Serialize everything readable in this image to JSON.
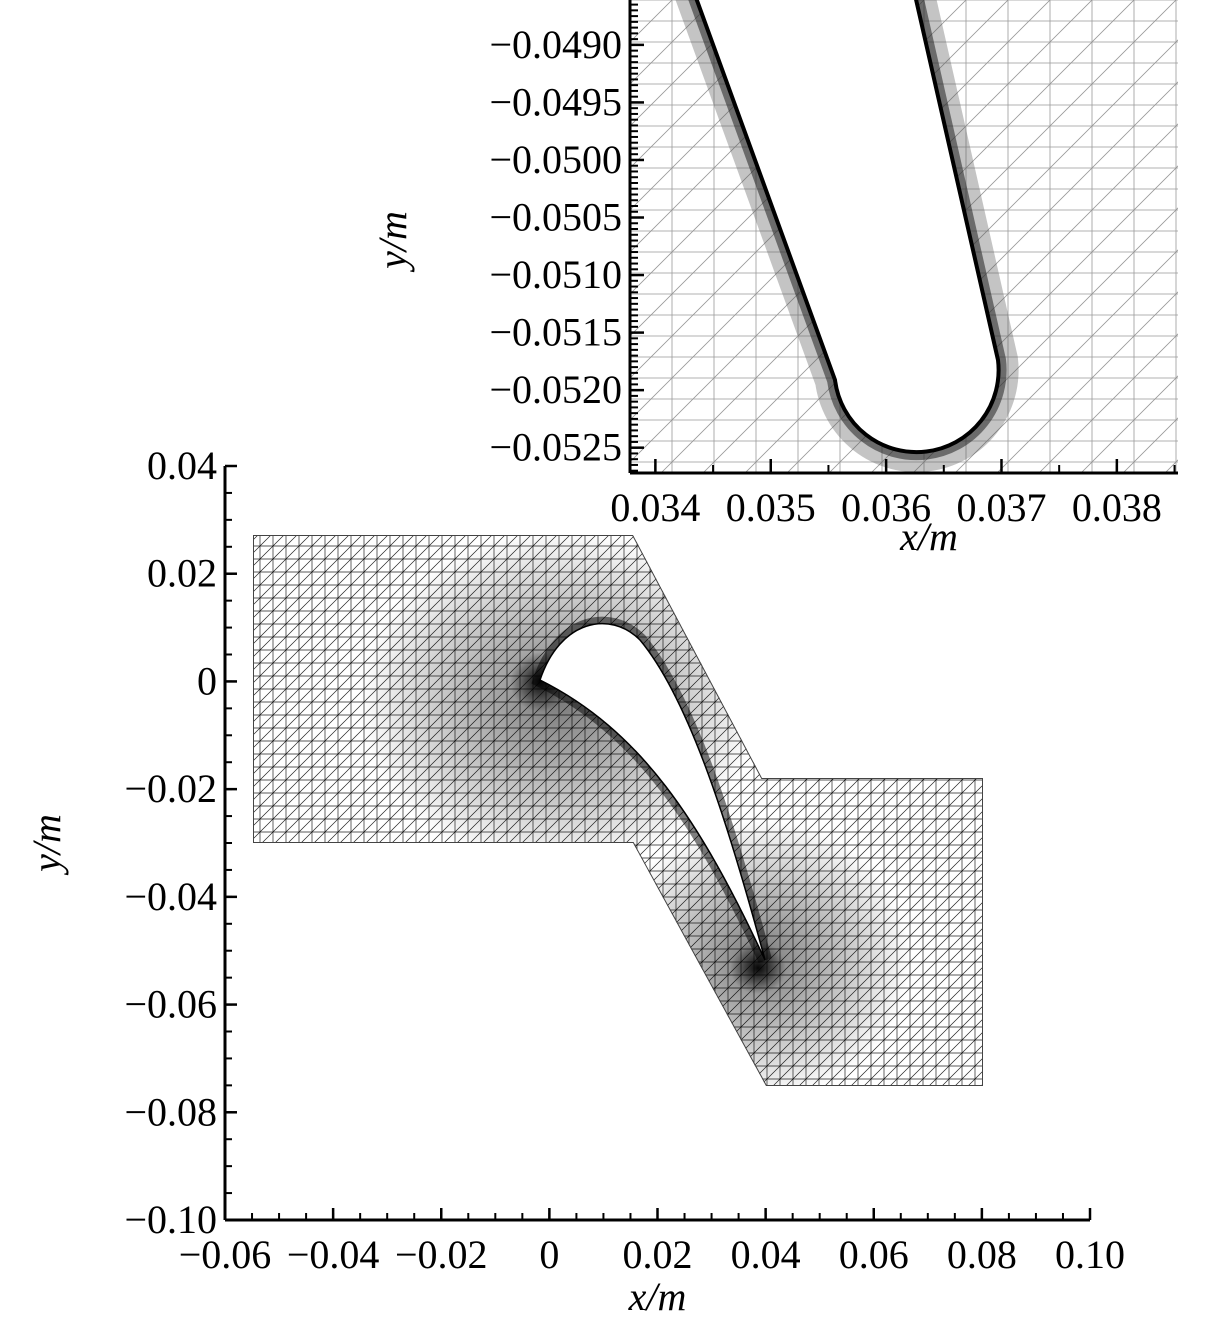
{
  "chart_data": [
    {
      "type": "mesh",
      "xlabel": "x/m",
      "ylabel": "y/m",
      "xlim": [
        -0.06,
        0.1
      ],
      "ylim": [
        -0.1,
        0.04
      ],
      "xticks": [
        {
          "value": -0.06,
          "label": "−0.06"
        },
        {
          "value": -0.04,
          "label": "−0.04"
        },
        {
          "value": -0.02,
          "label": "−0.02"
        },
        0,
        0.02,
        0.04,
        0.06,
        0.08,
        {
          "value": 0.1,
          "label": "0.10"
        }
      ],
      "yticks": [
        0.04,
        0.02,
        0,
        {
          "value": -0.02,
          "label": "−0.02"
        },
        {
          "value": -0.04,
          "label": "−0.04"
        },
        {
          "value": -0.06,
          "label": "−0.06"
        },
        {
          "value": -0.08,
          "label": "−0.08"
        },
        {
          "value": -0.1,
          "label": "−0.10"
        }
      ]
    },
    {
      "type": "mesh",
      "xlabel": "x/m",
      "ylabel": "y/m",
      "xlim": [
        0.03378,
        0.03853
      ],
      "ylim": [
        -0.05272,
        -0.04861
      ],
      "xticks": [
        0.034,
        0.035,
        0.036,
        0.037,
        0.038
      ],
      "yticks": [
        {
          "value": -0.049,
          "label": "−0.0490"
        },
        {
          "value": -0.0495,
          "label": "−0.0495"
        },
        {
          "value": -0.05,
          "label": "−0.0500"
        },
        {
          "value": -0.0505,
          "label": "−0.0505"
        },
        {
          "value": -0.051,
          "label": "−0.0510"
        },
        {
          "value": -0.0515,
          "label": "−0.0515"
        },
        {
          "value": -0.052,
          "label": "−0.0520"
        },
        {
          "value": -0.0525,
          "label": "−0.0525"
        }
      ]
    }
  ]
}
